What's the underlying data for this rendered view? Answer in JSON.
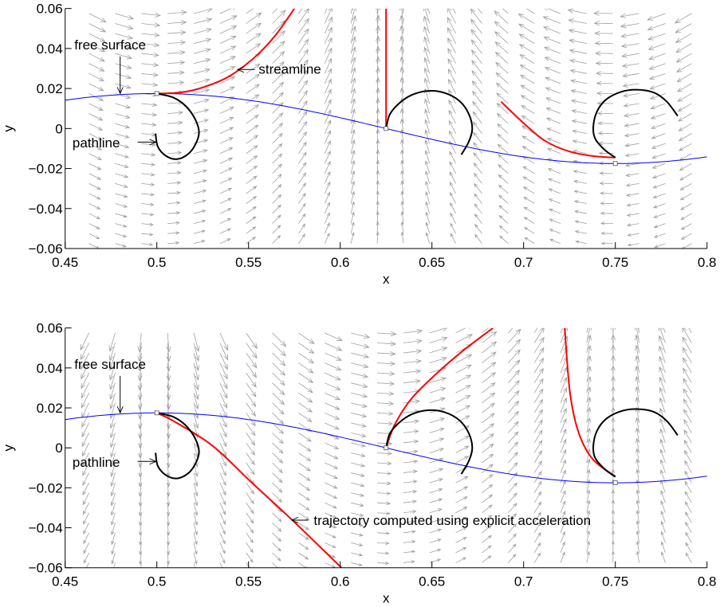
{
  "chart_data": [
    {
      "type": "line",
      "xlabel": "x",
      "ylabel": "y",
      "xlim": [
        0.45,
        0.8
      ],
      "ylim": [
        -0.06,
        0.06
      ],
      "xticks": [
        0.45,
        0.5,
        0.55,
        0.6,
        0.65,
        0.7,
        0.75,
        0.8
      ],
      "xtick_labels": [
        "0.45",
        "0.5",
        "0.55",
        "0.6",
        "0.65",
        "0.7",
        "0.75",
        "0.8"
      ],
      "yticks": [
        0.06,
        0.04,
        0.02,
        0,
        -0.02,
        -0.04,
        -0.06
      ],
      "ytick_labels": [
        "0.06",
        "0.04",
        "0.02",
        "0",
        "−0.02",
        "−0.04",
        "−0.06"
      ],
      "grid": false,
      "vector_field": {
        "kind": "velocity",
        "direction": "cos-sin",
        "color": "#a0a0a0"
      },
      "free_surface": {
        "amplitude": 0.0175,
        "crest_x": 0.5,
        "wavelength": 0.5,
        "color": "#0000ff"
      },
      "start_points": [
        [
          0.5,
          0.0175
        ],
        [
          0.625,
          0.0
        ],
        [
          0.75,
          -0.0175
        ]
      ],
      "pathlines": [
        [
          [
            0.5,
            0.0175
          ],
          [
            0.509,
            0.0155
          ],
          [
            0.516,
            0.011
          ],
          [
            0.521,
            0.0045
          ],
          [
            0.523,
            -0.002
          ],
          [
            0.521,
            -0.008
          ],
          [
            0.517,
            -0.0128
          ],
          [
            0.511,
            -0.0153
          ],
          [
            0.505,
            -0.0137
          ],
          [
            0.5005,
            -0.009
          ],
          [
            0.4993,
            -0.0025
          ]
        ],
        [
          [
            0.625,
            0
          ],
          [
            0.627,
            0.007
          ],
          [
            0.632,
            0.0125
          ],
          [
            0.639,
            0.0168
          ],
          [
            0.648,
            0.0188
          ],
          [
            0.657,
            0.0178
          ],
          [
            0.665,
            0.0138
          ],
          [
            0.67,
            0.0075
          ],
          [
            0.672,
            0
          ],
          [
            0.67,
            -0.0068
          ],
          [
            0.666,
            -0.0131
          ]
        ],
        [
          [
            0.75,
            -0.0145
          ],
          [
            0.744,
            -0.0105
          ],
          [
            0.739,
            -0.005
          ],
          [
            0.738,
            0.001
          ],
          [
            0.74,
            0.0085
          ],
          [
            0.745,
            0.0145
          ],
          [
            0.753,
            0.0183
          ],
          [
            0.7616,
            0.0194
          ],
          [
            0.771,
            0.018
          ],
          [
            0.778,
            0.0135
          ],
          [
            0.784,
            0.0063
          ]
        ]
      ],
      "red_curves": [
        [
          [
            0.5,
            0.0175
          ],
          [
            0.51,
            0.0178
          ],
          [
            0.52,
            0.0192
          ],
          [
            0.535,
            0.024
          ],
          [
            0.545,
            0.0295
          ],
          [
            0.555,
            0.037
          ],
          [
            0.565,
            0.047
          ],
          [
            0.575,
            0.06
          ]
        ],
        [
          [
            0.625,
            0
          ],
          [
            0.625,
            0.06
          ]
        ],
        [
          [
            0.6877,
            0.0134
          ],
          [
            0.7,
            0.0027
          ],
          [
            0.7116,
            -0.0061
          ],
          [
            0.725,
            -0.0115
          ],
          [
            0.738,
            -0.0138
          ],
          [
            0.75,
            -0.0145
          ]
        ]
      ],
      "annotations": [
        {
          "text": "free surface",
          "at": [
            0.455,
            0.0395
          ],
          "arrow_from": [
            0.48,
            0.036
          ],
          "arrow_to": [
            0.48,
            0.0175
          ]
        },
        {
          "text": "streamline",
          "at": [
            0.5555,
            0.0275
          ],
          "arrow_from": [
            0.5535,
            0.0295
          ],
          "arrow_to": [
            0.544,
            0.0295
          ]
        },
        {
          "text": "pathline",
          "at": [
            0.454,
            -0.0095
          ],
          "arrow_from": [
            0.4895,
            -0.0068
          ],
          "arrow_to": [
            0.4995,
            -0.0068
          ]
        }
      ]
    },
    {
      "type": "line",
      "xlabel": "x",
      "ylabel": "y",
      "xlim": [
        0.45,
        0.8
      ],
      "ylim": [
        -0.06,
        0.06
      ],
      "xticks": [
        0.45,
        0.5,
        0.55,
        0.6,
        0.65,
        0.7,
        0.75,
        0.8
      ],
      "xtick_labels": [
        "0.45",
        "0.5",
        "0.55",
        "0.6",
        "0.65",
        "0.7",
        "0.75",
        "0.8"
      ],
      "yticks": [
        0.06,
        0.04,
        0.02,
        0,
        -0.02,
        -0.04,
        -0.06
      ],
      "ytick_labels": [
        "0.06",
        "0.04",
        "0.02",
        "0",
        "−0.02",
        "−0.04",
        "−0.06"
      ],
      "grid": false,
      "vector_field": {
        "kind": "acceleration",
        "direction": "sin-negcos",
        "color": "#a0a0a0"
      },
      "free_surface": {
        "amplitude": 0.0175,
        "crest_x": 0.5,
        "wavelength": 0.5,
        "color": "#0000ff"
      },
      "start_points": [
        [
          0.5,
          0.0175
        ],
        [
          0.625,
          0.0
        ],
        [
          0.75,
          -0.0175
        ]
      ],
      "pathlines": [
        [
          [
            0.5,
            0.0175
          ],
          [
            0.509,
            0.0155
          ],
          [
            0.516,
            0.011
          ],
          [
            0.521,
            0.0045
          ],
          [
            0.523,
            -0.002
          ],
          [
            0.521,
            -0.008
          ],
          [
            0.517,
            -0.0128
          ],
          [
            0.511,
            -0.0153
          ],
          [
            0.505,
            -0.0137
          ],
          [
            0.5005,
            -0.009
          ],
          [
            0.4993,
            -0.0025
          ]
        ],
        [
          [
            0.625,
            0
          ],
          [
            0.627,
            0.007
          ],
          [
            0.632,
            0.0125
          ],
          [
            0.639,
            0.0168
          ],
          [
            0.648,
            0.0188
          ],
          [
            0.657,
            0.0178
          ],
          [
            0.665,
            0.0138
          ],
          [
            0.67,
            0.0075
          ],
          [
            0.672,
            0
          ],
          [
            0.67,
            -0.0068
          ],
          [
            0.666,
            -0.0131
          ]
        ],
        [
          [
            0.75,
            -0.0145
          ],
          [
            0.744,
            -0.0105
          ],
          [
            0.739,
            -0.005
          ],
          [
            0.738,
            0.001
          ],
          [
            0.74,
            0.0085
          ],
          [
            0.745,
            0.0145
          ],
          [
            0.753,
            0.0183
          ],
          [
            0.7616,
            0.0194
          ],
          [
            0.771,
            0.018
          ],
          [
            0.778,
            0.0135
          ],
          [
            0.784,
            0.0063
          ]
        ]
      ],
      "red_curves": [
        [
          [
            0.5,
            0.0175
          ],
          [
            0.5101,
            0.0129
          ],
          [
            0.5304,
            0.001
          ],
          [
            0.552,
            -0.0176
          ],
          [
            0.5739,
            -0.0362
          ],
          [
            0.6007,
            -0.06
          ]
        ],
        [
          [
            0.625,
            0
          ],
          [
            0.6297,
            0.0116
          ],
          [
            0.639,
            0.0248
          ],
          [
            0.6536,
            0.0381
          ],
          [
            0.668,
            0.0494
          ],
          [
            0.6833,
            0.06
          ]
        ],
        [
          [
            0.75,
            -0.0143
          ],
          [
            0.7377,
            -0.0057
          ],
          [
            0.73,
            0.0076
          ],
          [
            0.7253,
            0.0275
          ],
          [
            0.7224,
            0.06
          ]
        ]
      ],
      "annotations": [
        {
          "text": "free surface",
          "at": [
            0.455,
            0.0395
          ],
          "arrow_from": [
            0.48,
            0.036
          ],
          "arrow_to": [
            0.48,
            0.0175
          ]
        },
        {
          "text": "pathline",
          "at": [
            0.454,
            -0.0095
          ],
          "arrow_from": [
            0.4895,
            -0.0068
          ],
          "arrow_to": [
            0.4995,
            -0.0068
          ]
        },
        {
          "text": "trajectory computed using explicit acceleration",
          "at": [
            0.5855,
            -0.0385
          ],
          "arrow_from": [
            0.5825,
            -0.0362
          ],
          "arrow_to": [
            0.5735,
            -0.0362
          ]
        }
      ]
    }
  ]
}
